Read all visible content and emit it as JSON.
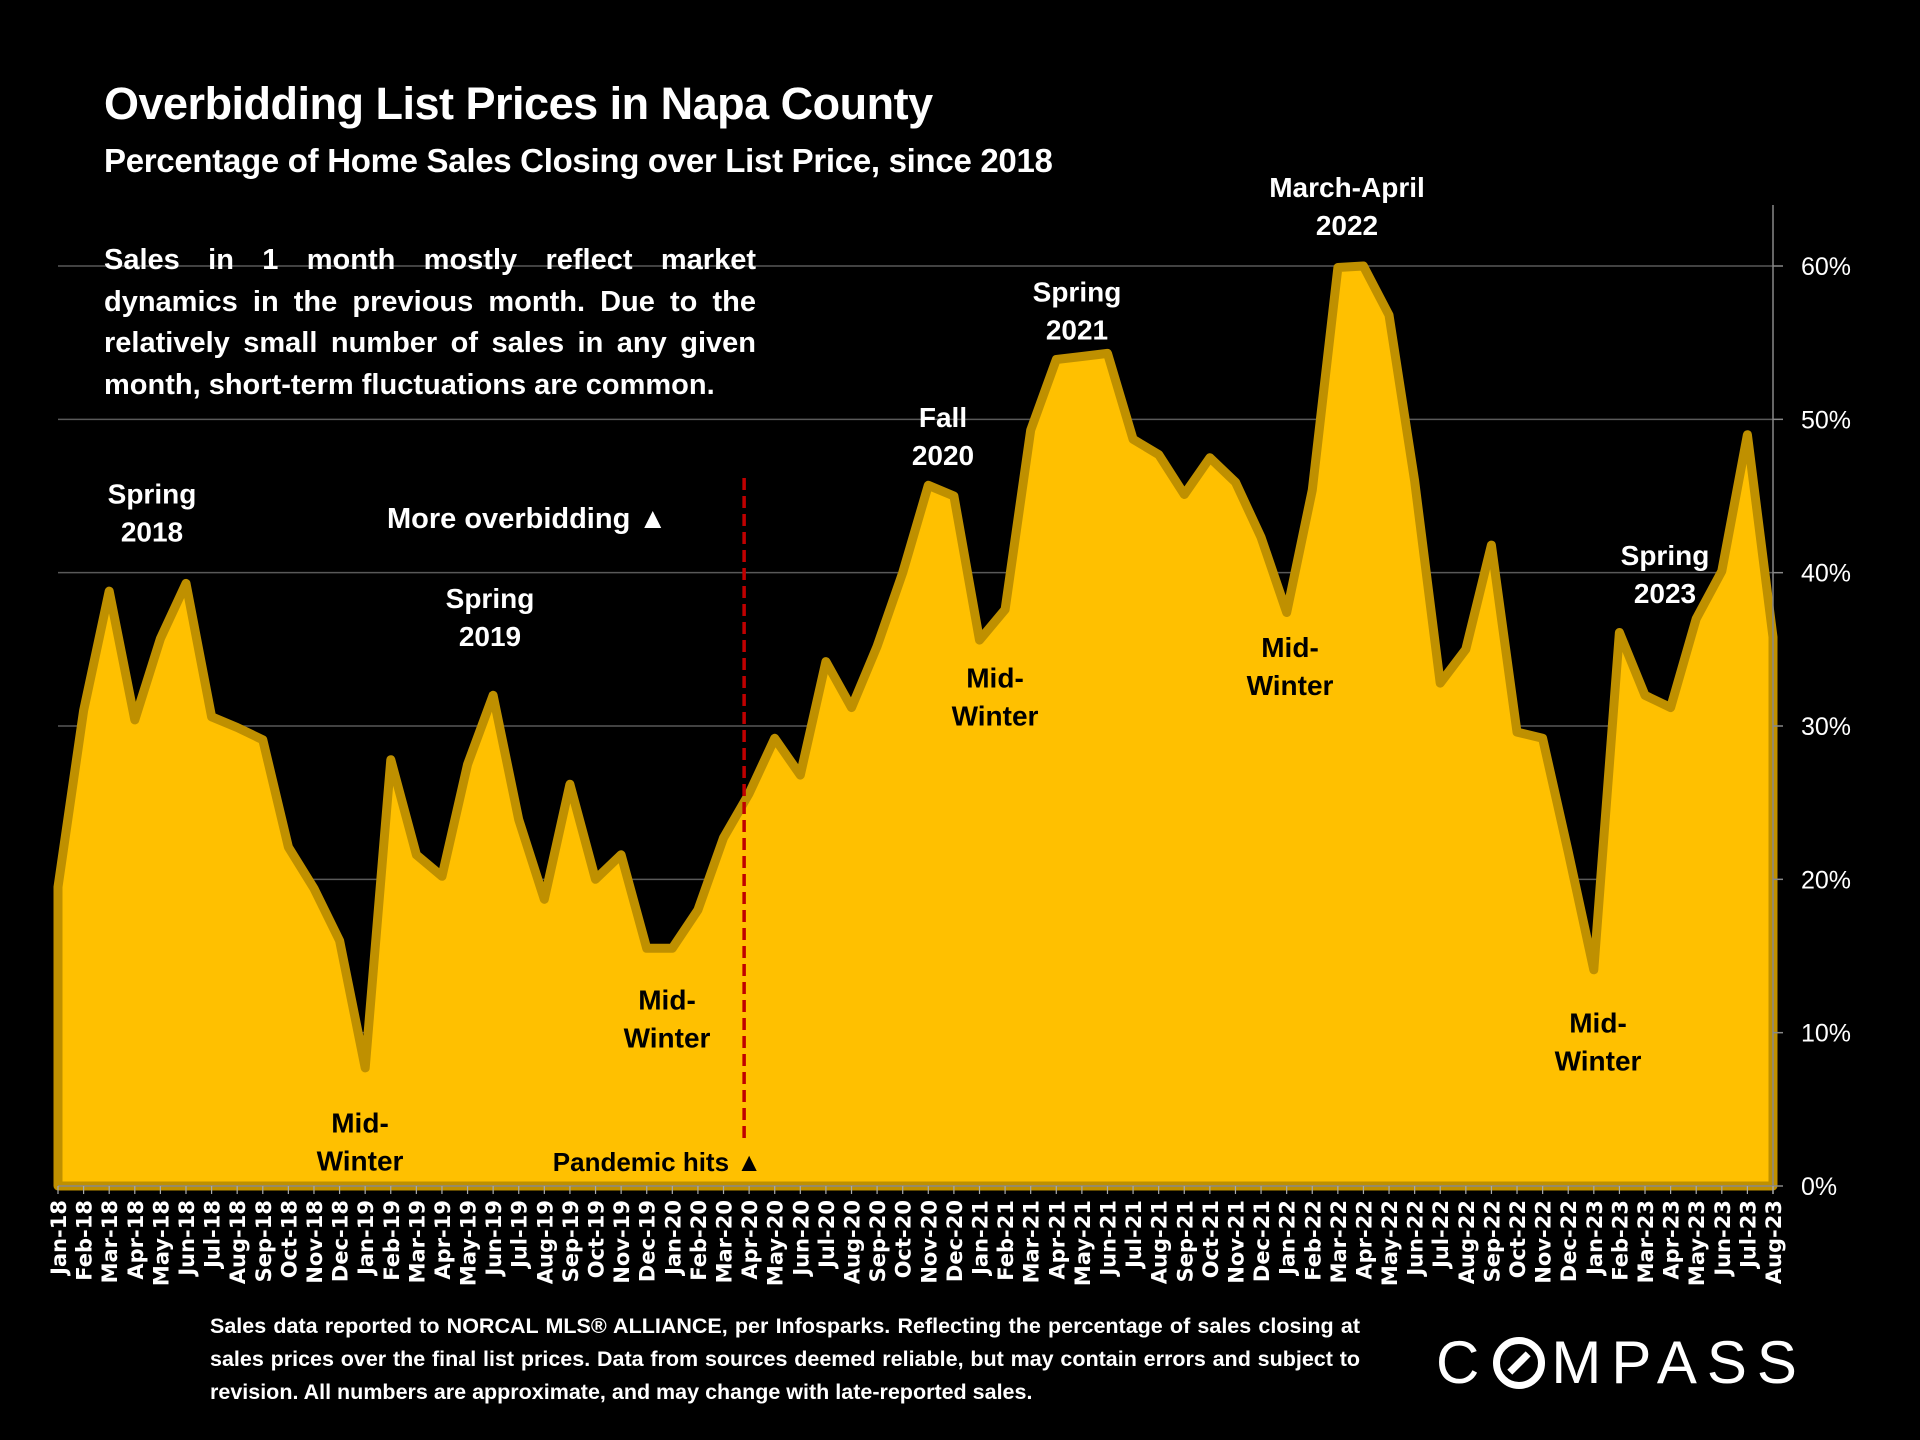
{
  "header": {
    "title": "Overbidding List Prices in Napa County",
    "subtitle": "Percentage of Home Sales Closing over List Price, since 2018"
  },
  "note": "Sales in 1 month mostly reflect market dynamics in the previous month. Due to the relatively small number of sales in any given month, short-term fluctuations are common.",
  "footer": "Sales data reported to NORCAL MLS® ALLIANCE, per Infosparks. Reflecting the percentage of sales closing at sales prices over the final list prices. Data from sources deemed reliable, but may contain errors and subject to revision. All numbers are approximate, and may change with late-reported sales.",
  "logo": {
    "prefix": "C",
    "suffix": "MPASS"
  },
  "colors": {
    "fill": "#FFC000",
    "stroke": "#BF9000",
    "marker": "#C00000",
    "grid": "#595959",
    "background": "#000000"
  },
  "chart_data": {
    "type": "area",
    "title": "Overbidding List Prices in Napa County",
    "subtitle": "Percentage of Home Sales Closing over List Price, since 2018",
    "xlabel": "",
    "ylabel": "",
    "ylim": [
      0,
      60
    ],
    "y_axis_position": "right",
    "y_ticks": [
      0,
      10,
      20,
      30,
      40,
      50,
      60
    ],
    "y_tick_format": "{v}%",
    "grid": true,
    "legend": "none",
    "categories": [
      "Jan-18",
      "Feb-18",
      "Mar-18",
      "Apr-18",
      "May-18",
      "Jun-18",
      "Jul-18",
      "Aug-18",
      "Sep-18",
      "Oct-18",
      "Nov-18",
      "Dec-18",
      "Jan-19",
      "Feb-19",
      "Mar-19",
      "Apr-19",
      "May-19",
      "Jun-19",
      "Jul-19",
      "Aug-19",
      "Sep-19",
      "Oct-19",
      "Nov-19",
      "Dec-19",
      "Jan-20",
      "Feb-20",
      "Mar-20",
      "Apr-20",
      "May-20",
      "Jun-20",
      "Jul-20",
      "Aug-20",
      "Sep-20",
      "Oct-20",
      "Nov-20",
      "Dec-20",
      "Jan-21",
      "Feb-21",
      "Mar-21",
      "Apr-21",
      "May-21",
      "Jun-21",
      "Jul-21",
      "Aug-21",
      "Sep-21",
      "Oct-21",
      "Nov-21",
      "Dec-21",
      "Jan-22",
      "Feb-22",
      "Mar-22",
      "Apr-22",
      "May-22",
      "Jun-22",
      "Jul-22",
      "Aug-22",
      "Sep-22",
      "Oct-22",
      "Nov-22",
      "Dec-22",
      "Jan-23",
      "Feb-23",
      "Mar-23",
      "Apr-23",
      "May-23",
      "Jun-23",
      "Jul-23",
      "Aug-23"
    ],
    "series": [
      {
        "name": "Percentage of Home Sales Closing over List Price",
        "values": [
          19.5,
          31.0,
          38.8,
          30.4,
          35.7,
          39.3,
          30.6,
          29.9,
          29.1,
          22.1,
          19.4,
          16.0,
          7.7,
          27.8,
          21.6,
          20.2,
          27.5,
          32.0,
          23.9,
          18.7,
          26.2,
          20.0,
          21.6,
          15.5,
          15.5,
          18.0,
          22.7,
          25.6,
          29.2,
          26.8,
          34.2,
          31.2,
          35.2,
          40.0,
          45.7,
          45.0,
          35.6,
          37.6,
          49.3,
          53.9,
          54.1,
          54.3,
          48.7,
          47.7,
          45.1,
          47.5,
          45.9,
          42.3,
          37.4,
          45.4,
          59.9,
          60.0,
          56.8,
          46.0,
          32.8,
          35.0,
          41.8,
          29.6,
          29.2,
          21.8,
          14.1,
          36.1,
          32.0,
          31.2,
          37.0,
          40.1,
          49.0,
          35.8
        ]
      }
    ],
    "annotations": [
      {
        "lines": [
          "Spring",
          "2018"
        ],
        "x": "Apr-18",
        "y": 44.5,
        "color": "white"
      },
      {
        "lines": [
          "Mid-",
          "Winter"
        ],
        "x": "Jan-19",
        "y": 3.5,
        "color": "black"
      },
      {
        "lines": [
          "Spring",
          "2019"
        ],
        "x": "Jun-19",
        "y": 37.7,
        "color": "white"
      },
      {
        "lines": [
          "Mid-",
          "Winter"
        ],
        "x": "Jan-20",
        "y": 11.5,
        "color": "black"
      },
      {
        "lines": [
          "Fall",
          "2020"
        ],
        "x": "Dec-20",
        "y": 49.5,
        "color": "white"
      },
      {
        "lines": [
          "Mid-",
          "Winter"
        ],
        "x": "Feb-21",
        "y": 32.5,
        "color": "black"
      },
      {
        "lines": [
          "Spring",
          "2021"
        ],
        "x": "May-21",
        "y": 57.7,
        "color": "white"
      },
      {
        "lines": [
          "March-April",
          "2022"
        ],
        "x": "Mar-22",
        "y": 64.5,
        "color": "white"
      },
      {
        "lines": [
          "Mid-",
          "Winter"
        ],
        "x": "Jan-22",
        "y": 34.5,
        "color": "black"
      },
      {
        "lines": [
          "Mid-",
          "Winter"
        ],
        "x": "Jan-23",
        "y": 10.0,
        "color": "black"
      },
      {
        "lines": [
          "Spring",
          "2023"
        ],
        "x": "Apr-23",
        "y": 40.5,
        "color": "white"
      }
    ],
    "more_overbidding_label": "More overbidding ▲",
    "pandemic_label": "Pandemic hits ▲",
    "pandemic_marker_x": "Apr-20"
  }
}
